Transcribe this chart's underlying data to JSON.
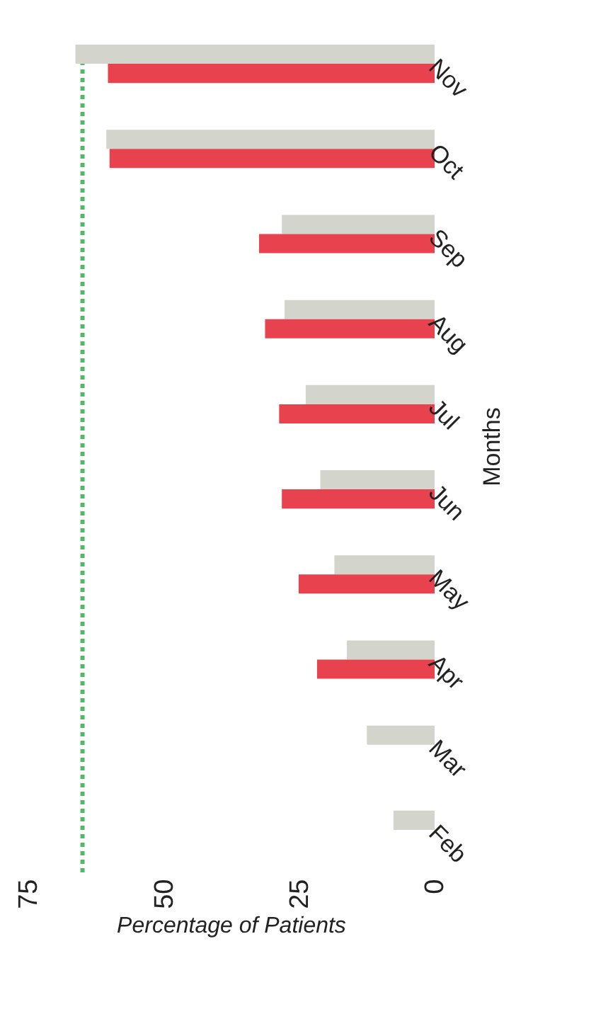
{
  "chart_data": {
    "type": "bar",
    "orientation": "horizontal",
    "xlabel": "Percentage of Patients",
    "ylabel": "Months",
    "categories": [
      "Nov",
      "Oct",
      "Sep",
      "Aug",
      "Jul",
      "Jun",
      "May",
      "Apr",
      "Mar",
      "Feb"
    ],
    "series": [
      {
        "color": "#d3d4cc",
        "values": [
          66.3,
          60.6,
          28.2,
          27.7,
          23.8,
          21.1,
          18.5,
          16.2,
          12.5,
          7.6
        ]
      },
      {
        "color": "#e8424f",
        "values": [
          60.3,
          60,
          32.4,
          31.3,
          28.7,
          28.2,
          25.1,
          21.7,
          null,
          null
        ]
      }
    ],
    "xlim": [
      75,
      0
    ],
    "xticks": [
      75,
      50,
      25,
      0
    ],
    "ref_lines": [
      {
        "axis": "x",
        "value": 65,
        "color": "#52b96a",
        "line_style": "dotted"
      }
    ]
  }
}
